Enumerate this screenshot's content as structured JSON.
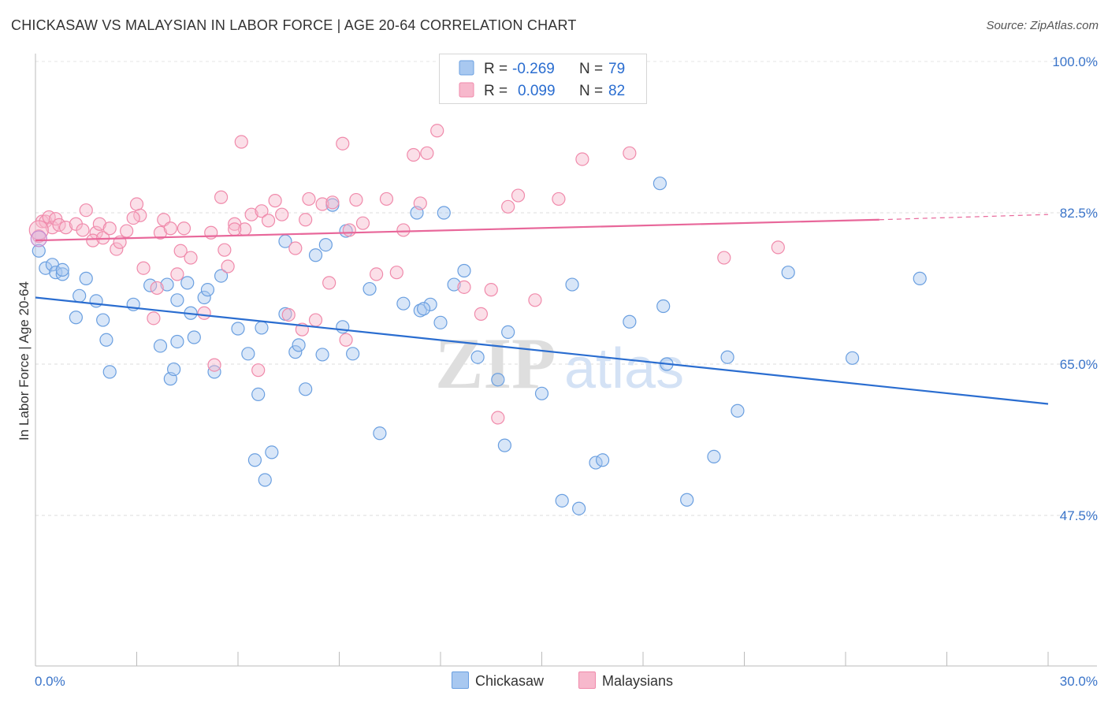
{
  "title": "CHICKASAW VS MALAYSIAN IN LABOR FORCE | AGE 20-64 CORRELATION CHART",
  "source": "Source: ZipAtlas.com",
  "watermark": {
    "zip": "ZIP",
    "atlas": "atlas"
  },
  "legend_top": {
    "rows": [
      {
        "r_label": "R =",
        "r_value": "-0.269",
        "n_label": "N =",
        "n_value": "79",
        "color": "#a8c8f0"
      },
      {
        "r_label": "R =",
        "r_value": "0.099",
        "n_label": "N =",
        "n_value": "82",
        "color": "#f7b8cc"
      }
    ]
  },
  "chart_data": {
    "type": "scatter",
    "title": "CHICKASAW VS MALAYSIAN IN LABOR FORCE | AGE 20-64 CORRELATION CHART",
    "xlabel": "",
    "ylabel": "In Labor Force | Age 20-64",
    "xlim": [
      0,
      30
    ],
    "ylim": [
      30,
      100
    ],
    "x_tick_labels": [
      "0.0%",
      "30.0%"
    ],
    "y_ticks": [
      47.5,
      65.0,
      82.5,
      100.0
    ],
    "y_tick_labels": [
      "47.5%",
      "65.0%",
      "82.5%",
      "100.0%"
    ],
    "grid": true,
    "legend_position": "bottom-center",
    "series": [
      {
        "name": "Chickasaw",
        "color": "#6a9fe0",
        "fill": "#a8c8f0",
        "trend": {
          "x": [
            0,
            30
          ],
          "y": [
            72.7,
            60.4
          ],
          "color": "#2a6dd0"
        },
        "points": [
          [
            0.1,
            78.1
          ],
          [
            0.3,
            76.1
          ],
          [
            0.5,
            76.5
          ],
          [
            0.6,
            75.6
          ],
          [
            0.8,
            75.4
          ],
          [
            1.3,
            72.9
          ],
          [
            1.5,
            74.9
          ],
          [
            1.2,
            70.4
          ],
          [
            1.8,
            72.3
          ],
          [
            0.8,
            75.9
          ],
          [
            2.0,
            70.1
          ],
          [
            2.1,
            67.8
          ],
          [
            2.2,
            64.1
          ],
          [
            2.9,
            71.9
          ],
          [
            3.4,
            74.1
          ],
          [
            3.7,
            67.1
          ],
          [
            4.0,
            63.3
          ],
          [
            4.1,
            64.4
          ],
          [
            3.9,
            74.2
          ],
          [
            4.5,
            74.4
          ],
          [
            4.2,
            67.6
          ],
          [
            4.2,
            72.4
          ],
          [
            4.7,
            68.1
          ],
          [
            4.6,
            70.9
          ],
          [
            5.0,
            72.7
          ],
          [
            5.1,
            73.6
          ],
          [
            5.3,
            64.1
          ],
          [
            5.5,
            75.2
          ],
          [
            6.0,
            69.1
          ],
          [
            6.3,
            66.2
          ],
          [
            6.5,
            53.9
          ],
          [
            6.6,
            61.5
          ],
          [
            6.7,
            69.2
          ],
          [
            6.8,
            51.6
          ],
          [
            7.0,
            54.8
          ],
          [
            7.4,
            79.2
          ],
          [
            7.4,
            70.8
          ],
          [
            7.7,
            66.4
          ],
          [
            7.8,
            67.2
          ],
          [
            8.0,
            62.1
          ],
          [
            8.3,
            77.6
          ],
          [
            8.5,
            66.1
          ],
          [
            8.6,
            78.8
          ],
          [
            8.8,
            83.4
          ],
          [
            9.1,
            69.3
          ],
          [
            9.2,
            80.4
          ],
          [
            9.4,
            66.2
          ],
          [
            9.9,
            73.7
          ],
          [
            10.2,
            57.0
          ],
          [
            10.9,
            72.0
          ],
          [
            11.3,
            82.5
          ],
          [
            11.4,
            71.2
          ],
          [
            11.7,
            71.9
          ],
          [
            11.5,
            71.4
          ],
          [
            12.0,
            69.8
          ],
          [
            12.1,
            82.5
          ],
          [
            12.4,
            74.2
          ],
          [
            12.7,
            75.8
          ],
          [
            13.1,
            65.8
          ],
          [
            13.7,
            63.2
          ],
          [
            13.9,
            55.6
          ],
          [
            14.0,
            68.7
          ],
          [
            15.0,
            61.6
          ],
          [
            15.6,
            49.2
          ],
          [
            15.9,
            74.2
          ],
          [
            16.1,
            48.3
          ],
          [
            16.6,
            53.6
          ],
          [
            16.8,
            53.9
          ],
          [
            17.6,
            69.9
          ],
          [
            18.5,
            85.9
          ],
          [
            18.6,
            71.7
          ],
          [
            19.3,
            49.3
          ],
          [
            20.1,
            54.3
          ],
          [
            20.5,
            65.8
          ],
          [
            20.8,
            59.6
          ],
          [
            22.3,
            75.6
          ],
          [
            24.2,
            65.7
          ],
          [
            26.2,
            74.9
          ],
          [
            18.7,
            65.0
          ]
        ]
      },
      {
        "name": "Malaysians",
        "color": "#f08aab",
        "fill": "#f7b8cc",
        "trend": {
          "x": [
            0,
            25
          ],
          "y": [
            79.3,
            81.7
          ],
          "dashed_to": [
            30,
            82.3
          ],
          "color": "#e8679a"
        },
        "points": [
          [
            0.2,
            81.5
          ],
          [
            0.3,
            81.5
          ],
          [
            0.4,
            82.0
          ],
          [
            0.5,
            80.8
          ],
          [
            0.6,
            81.8
          ],
          [
            0.7,
            81.1
          ],
          [
            0.9,
            80.8
          ],
          [
            1.2,
            81.2
          ],
          [
            1.5,
            82.8
          ],
          [
            1.8,
            80.2
          ],
          [
            1.4,
            80.5
          ],
          [
            1.7,
            79.3
          ],
          [
            1.9,
            81.2
          ],
          [
            2.0,
            79.6
          ],
          [
            2.2,
            80.7
          ],
          [
            2.4,
            78.3
          ],
          [
            2.5,
            79.1
          ],
          [
            2.7,
            80.4
          ],
          [
            3.0,
            83.5
          ],
          [
            3.1,
            82.2
          ],
          [
            3.2,
            76.1
          ],
          [
            3.5,
            70.3
          ],
          [
            3.7,
            80.2
          ],
          [
            3.8,
            81.7
          ],
          [
            4.0,
            80.7
          ],
          [
            4.2,
            75.4
          ],
          [
            4.3,
            78.1
          ],
          [
            4.4,
            80.7
          ],
          [
            4.6,
            77.3
          ],
          [
            5.0,
            70.9
          ],
          [
            5.2,
            80.2
          ],
          [
            5.3,
            64.9
          ],
          [
            5.5,
            84.3
          ],
          [
            5.6,
            78.2
          ],
          [
            5.7,
            76.3
          ],
          [
            5.9,
            81.2
          ],
          [
            6.1,
            90.7
          ],
          [
            6.2,
            80.6
          ],
          [
            6.4,
            82.3
          ],
          [
            6.6,
            64.3
          ],
          [
            6.7,
            82.7
          ],
          [
            7.1,
            83.9
          ],
          [
            7.3,
            82.3
          ],
          [
            7.5,
            70.7
          ],
          [
            7.7,
            78.4
          ],
          [
            7.9,
            69.0
          ],
          [
            8.0,
            81.7
          ],
          [
            8.1,
            84.1
          ],
          [
            8.3,
            70.1
          ],
          [
            8.5,
            83.5
          ],
          [
            8.7,
            74.4
          ],
          [
            8.8,
            83.7
          ],
          [
            9.1,
            90.5
          ],
          [
            9.2,
            67.8
          ],
          [
            9.3,
            80.5
          ],
          [
            9.5,
            84.0
          ],
          [
            10.1,
            75.4
          ],
          [
            10.4,
            84.1
          ],
          [
            10.7,
            75.6
          ],
          [
            10.9,
            80.5
          ],
          [
            11.2,
            89.2
          ],
          [
            11.4,
            83.6
          ],
          [
            11.6,
            89.4
          ],
          [
            11.9,
            92.0
          ],
          [
            13.5,
            73.6
          ],
          [
            13.7,
            58.8
          ],
          [
            14.0,
            83.2
          ],
          [
            14.3,
            84.5
          ],
          [
            14.8,
            72.4
          ],
          [
            15.5,
            84.1
          ],
          [
            16.2,
            88.7
          ],
          [
            17.6,
            89.4
          ],
          [
            20.4,
            77.3
          ],
          [
            22.0,
            78.5
          ],
          [
            12.7,
            73.9
          ],
          [
            13.2,
            70.8
          ],
          [
            0.1,
            79.8
          ],
          [
            9.7,
            81.3
          ],
          [
            6.9,
            81.6
          ],
          [
            3.6,
            73.8
          ],
          [
            2.9,
            81.9
          ],
          [
            5.9,
            80.6
          ]
        ]
      }
    ]
  },
  "bottom_legend": [
    {
      "label": "Chickasaw",
      "color": "#a8c8f0",
      "border": "#6a9fe0"
    },
    {
      "label": "Malaysians",
      "color": "#f7b8cc",
      "border": "#f08aab"
    }
  ]
}
